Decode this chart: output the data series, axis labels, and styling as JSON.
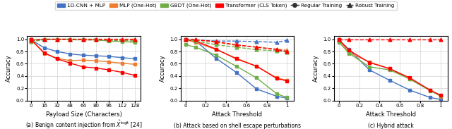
{
  "colors": {
    "blue": "#4472C4",
    "orange": "#ED7D31",
    "green": "#70AD47",
    "red": "#FF0000"
  },
  "panel_a": {
    "xlabel": "Payload Size (Characters)",
    "ylabel": "Accuracy",
    "caption": "(a) Benign content injection from $\\hat{X}^{\\mathrm{logit}}$ [24]",
    "x": [
      0,
      16,
      32,
      48,
      64,
      80,
      96,
      112,
      128
    ],
    "blue_reg": [
      0.99,
      0.86,
      0.8,
      0.76,
      0.74,
      0.73,
      0.72,
      0.7,
      0.68
    ],
    "orange_reg": [
      0.99,
      0.77,
      0.69,
      0.65,
      0.66,
      0.65,
      0.63,
      0.61,
      0.59
    ],
    "green_reg": [
      0.99,
      1.0,
      1.0,
      0.99,
      0.99,
      0.99,
      0.97,
      0.96,
      0.95
    ],
    "red_reg": [
      0.99,
      0.78,
      0.68,
      0.61,
      0.55,
      0.53,
      0.5,
      0.46,
      0.41
    ],
    "blue_rob": [
      0.97,
      0.99,
      1.0,
      1.0,
      1.0,
      1.0,
      1.0,
      1.0,
      1.0
    ],
    "orange_rob": [
      0.98,
      0.99,
      1.0,
      1.0,
      1.0,
      1.0,
      1.0,
      1.0,
      1.0
    ],
    "green_rob": [
      0.96,
      0.99,
      1.0,
      1.0,
      0.99,
      0.99,
      0.98,
      0.98,
      0.97
    ],
    "red_rob": [
      0.98,
      1.0,
      1.0,
      1.0,
      0.99,
      0.99,
      0.99,
      0.99,
      0.99
    ]
  },
  "panel_b": {
    "xlabel": "Attack Threshold",
    "ylabel": "Accuracy",
    "caption": "(b) Attack based on shell escape perturbations",
    "x": [
      0,
      0.1,
      0.3,
      0.5,
      0.7,
      0.9,
      1.0
    ],
    "blue_reg": [
      0.99,
      0.97,
      0.69,
      0.46,
      0.19,
      0.07,
      0.04
    ],
    "orange_reg": [
      0.99,
      0.95,
      0.83,
      0.69,
      0.56,
      0.37,
      0.33
    ],
    "green_reg": [
      0.91,
      0.87,
      0.74,
      0.56,
      0.37,
      0.11,
      0.05
    ],
    "red_reg": [
      0.99,
      0.97,
      0.84,
      0.68,
      0.56,
      0.36,
      0.32
    ],
    "blue_rob": [
      1.0,
      0.99,
      0.97,
      0.97,
      0.96,
      0.95,
      0.98
    ],
    "orange_rob": [
      1.0,
      0.99,
      0.95,
      0.9,
      0.87,
      0.84,
      0.82
    ],
    "green_rob": [
      0.99,
      0.97,
      0.91,
      0.87,
      0.83,
      0.81,
      0.79
    ],
    "red_rob": [
      1.0,
      0.99,
      0.96,
      0.91,
      0.87,
      0.83,
      0.8
    ]
  },
  "panel_c": {
    "xlabel": "Attack Threshold",
    "ylabel": "Accuracy",
    "caption": "(c) Hybrid attack",
    "x": [
      0,
      0.1,
      0.3,
      0.5,
      0.7,
      0.9,
      1.0
    ],
    "blue_reg": [
      0.99,
      0.83,
      0.5,
      0.33,
      0.17,
      0.05,
      0.02
    ],
    "orange_reg": [
      0.99,
      0.78,
      0.63,
      0.52,
      0.35,
      0.17,
      0.07
    ],
    "green_reg": [
      0.95,
      0.77,
      0.55,
      0.5,
      0.35,
      0.16,
      0.08
    ],
    "red_reg": [
      0.99,
      0.82,
      0.62,
      0.52,
      0.37,
      0.17,
      0.09
    ],
    "red_rob": [
      1.0,
      1.0,
      1.0,
      1.0,
      1.0,
      1.0,
      1.0
    ]
  },
  "legend": {
    "labels": [
      "1D-CNN + MLP",
      "MLP (One-Hot)",
      "GBDT (One-Hot)",
      "Transformer (CLS Token)",
      "Regular Training",
      "Robust Training"
    ],
    "colors": [
      "#4472C4",
      "#ED7D31",
      "#70AD47",
      "#FF0000",
      "#333333",
      "#333333"
    ]
  }
}
